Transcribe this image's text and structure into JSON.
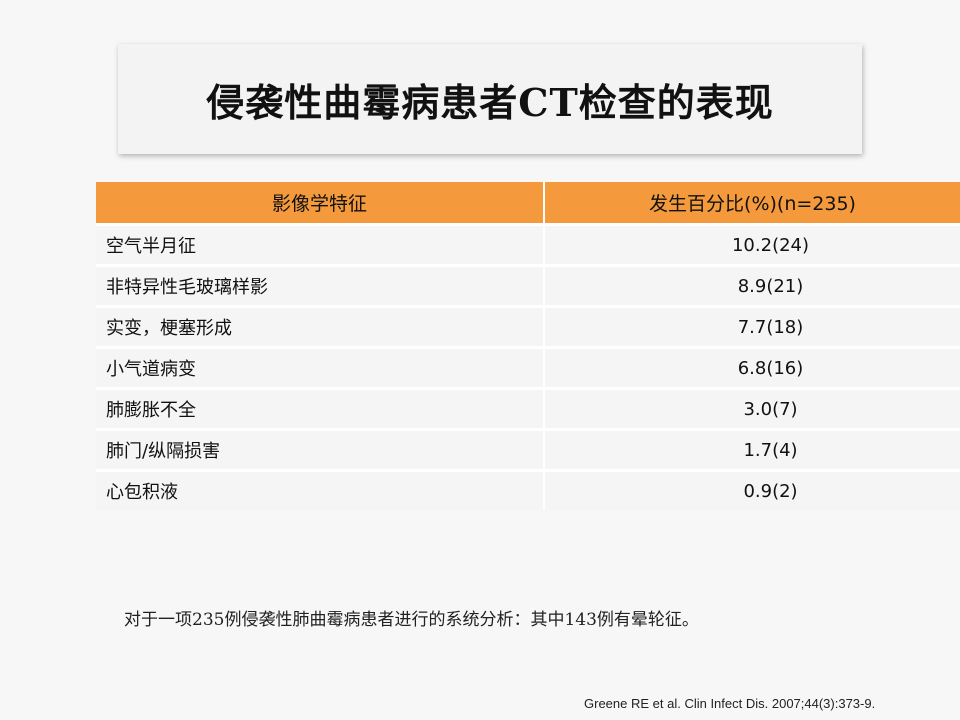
{
  "slide": {
    "title": "侵袭性曲霉病患者CT检查的表现",
    "table": {
      "headers": [
        "影像学特征",
        "发生百分比(%)(n=235)"
      ],
      "rows": [
        {
          "feature": "空气半月征",
          "percent": "10.2(24)"
        },
        {
          "feature": "非特异性毛玻璃样影",
          "percent": "8.9(21)"
        },
        {
          "feature": "实变，梗塞形成",
          "percent": "7.7(18)"
        },
        {
          "feature": "小气道病变",
          "percent": "6.8(16)"
        },
        {
          "feature": "肺膨胀不全",
          "percent": "3.0(7)"
        },
        {
          "feature": "肺门/纵隔损害",
          "percent": "1.7(4)"
        },
        {
          "feature": "心包积液",
          "percent": "0.9(2)"
        }
      ]
    },
    "note": "对于一项235例侵袭性肺曲霉病患者进行的系统分析：其中143例有晕轮征。",
    "citation": "Greene RE et al. Clin Infect Dis. 2007;44(3):373-9.",
    "colors": {
      "header_bg": "#f59a3c",
      "row_bg": "#f5f5f5",
      "page_bg": "#f7f7f7"
    }
  }
}
